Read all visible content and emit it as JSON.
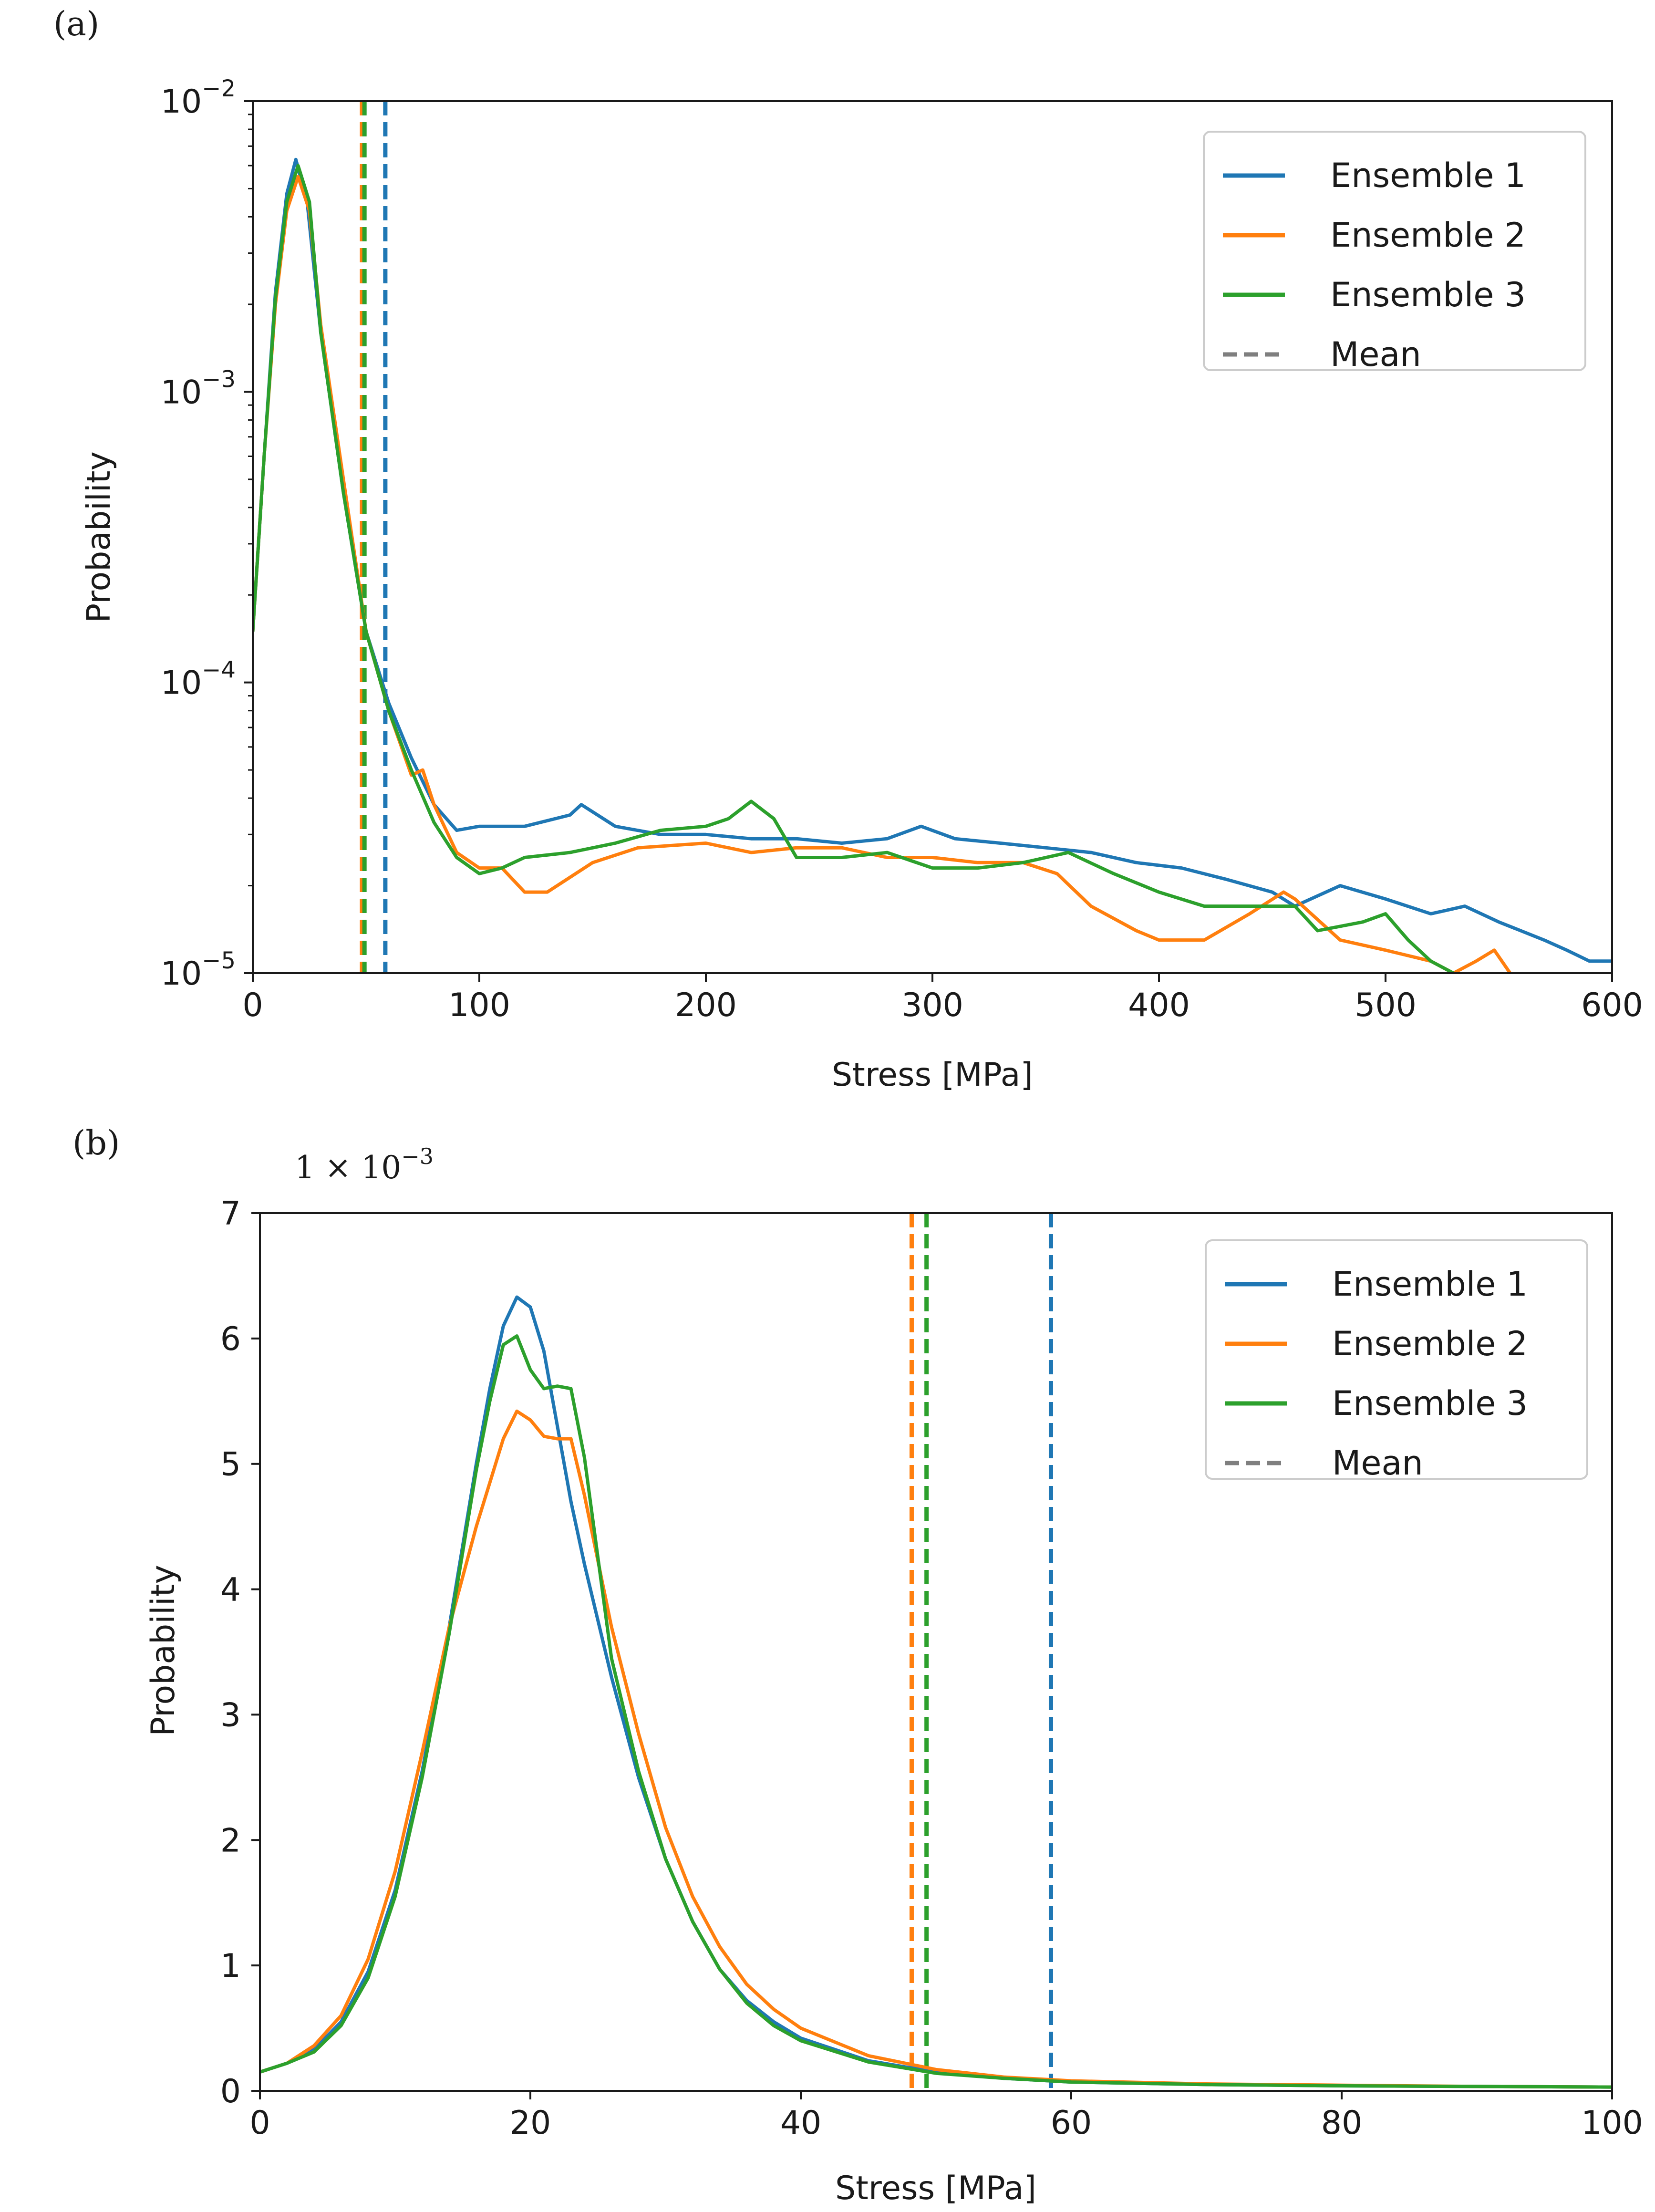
{
  "colors": {
    "ensemble1": "#1f77b4",
    "ensemble2": "#ff7f0e",
    "ensemble3": "#2ca02c",
    "mean_legend": "#7f7f7f",
    "axis": "#1a1a1a"
  },
  "chart_data": [
    {
      "panel_label": "(a)",
      "type": "line",
      "yscale": "log",
      "xlabel": "Stress [MPa]",
      "ylabel": "Probability",
      "xlim": [
        0,
        600
      ],
      "ylim": [
        1e-05,
        0.01
      ],
      "xticks": [
        0,
        100,
        200,
        300,
        400,
        500,
        600
      ],
      "xtick_labels": [
        "0",
        "100",
        "200",
        "300",
        "400",
        "500",
        "600"
      ],
      "yticks": [
        {
          "value": 0.01,
          "base": "10",
          "exp": "−2"
        },
        {
          "value": 0.001,
          "base": "10",
          "exp": "−3"
        },
        {
          "value": 0.0001,
          "base": "10",
          "exp": "−4"
        },
        {
          "value": 1e-05,
          "base": "10",
          "exp": "−5"
        }
      ],
      "legend": {
        "position": "top-right",
        "entries": [
          "Ensemble 1",
          "Ensemble 2",
          "Ensemble 3",
          "Mean"
        ]
      },
      "series": [
        {
          "name": "Ensemble 1",
          "color": "#1f77b4",
          "x": [
            0,
            5,
            10,
            15,
            19,
            24,
            30,
            40,
            50,
            60,
            70,
            80,
            90,
            100,
            120,
            140,
            145,
            160,
            180,
            200,
            220,
            240,
            260,
            280,
            295,
            310,
            330,
            350,
            370,
            390,
            410,
            430,
            450,
            460,
            480,
            500,
            520,
            535,
            550,
            570,
            580,
            590,
            600
          ],
          "values": [
            0.00015,
            0.0006,
            0.0022,
            0.0048,
            0.0063,
            0.0045,
            0.0016,
            0.00045,
            0.00015,
            8.5e-05,
            5.5e-05,
            3.8e-05,
            3.1e-05,
            3.2e-05,
            3.2e-05,
            3.5e-05,
            3.8e-05,
            3.2e-05,
            3e-05,
            3e-05,
            2.9e-05,
            2.9e-05,
            2.8e-05,
            2.9e-05,
            3.2e-05,
            2.9e-05,
            2.8e-05,
            2.7e-05,
            2.6e-05,
            2.4e-05,
            2.3e-05,
            2.1e-05,
            1.9e-05,
            1.7e-05,
            2e-05,
            1.8e-05,
            1.6e-05,
            1.7e-05,
            1.5e-05,
            1.3e-05,
            1.2e-05,
            1.1e-05,
            1.1e-05
          ]
        },
        {
          "name": "Ensemble 2",
          "color": "#ff7f0e",
          "x": [
            0,
            5,
            10,
            15,
            20,
            25,
            30,
            40,
            50,
            60,
            70,
            75,
            80,
            90,
            100,
            110,
            120,
            130,
            150,
            170,
            200,
            220,
            240,
            260,
            280,
            300,
            320,
            340,
            355,
            370,
            390,
            400,
            420,
            440,
            455,
            460,
            480,
            500,
            520,
            530,
            540,
            548,
            555
          ],
          "values": [
            0.00015,
            0.0006,
            0.002,
            0.0042,
            0.0055,
            0.0042,
            0.0017,
            0.0005,
            0.00015,
            8e-05,
            4.8e-05,
            5e-05,
            3.8e-05,
            2.6e-05,
            2.3e-05,
            2.3e-05,
            1.9e-05,
            1.9e-05,
            2.4e-05,
            2.7e-05,
            2.8e-05,
            2.6e-05,
            2.7e-05,
            2.7e-05,
            2.5e-05,
            2.5e-05,
            2.4e-05,
            2.4e-05,
            2.2e-05,
            1.7e-05,
            1.4e-05,
            1.3e-05,
            1.3e-05,
            1.6e-05,
            1.9e-05,
            1.8e-05,
            1.3e-05,
            1.2e-05,
            1.1e-05,
            1e-05,
            1.1e-05,
            1.2e-05,
            1e-05
          ]
        },
        {
          "name": "Ensemble 3",
          "color": "#2ca02c",
          "x": [
            0,
            5,
            10,
            15,
            20,
            25,
            30,
            40,
            50,
            60,
            70,
            80,
            90,
            100,
            110,
            120,
            140,
            160,
            180,
            200,
            210,
            220,
            230,
            240,
            260,
            280,
            300,
            320,
            340,
            360,
            380,
            400,
            420,
            440,
            460,
            470,
            490,
            500,
            510,
            520,
            530
          ],
          "values": [
            0.00015,
            0.0006,
            0.0021,
            0.0045,
            0.006,
            0.0045,
            0.0016,
            0.00045,
            0.00015,
            8e-05,
            5e-05,
            3.3e-05,
            2.5e-05,
            2.2e-05,
            2.3e-05,
            2.5e-05,
            2.6e-05,
            2.8e-05,
            3.1e-05,
            3.2e-05,
            3.4e-05,
            3.9e-05,
            3.4e-05,
            2.5e-05,
            2.5e-05,
            2.6e-05,
            2.3e-05,
            2.3e-05,
            2.4e-05,
            2.6e-05,
            2.2e-05,
            1.9e-05,
            1.7e-05,
            1.7e-05,
            1.7e-05,
            1.4e-05,
            1.5e-05,
            1.6e-05,
            1.3e-05,
            1.1e-05,
            1e-05
          ]
        }
      ],
      "means": [
        {
          "name": "Ensemble 1",
          "value": 58.5,
          "color": "#1f77b4"
        },
        {
          "name": "Ensemble 2",
          "value": 48.2,
          "color": "#ff7f0e"
        },
        {
          "name": "Ensemble 3",
          "value": 49.3,
          "color": "#2ca02c"
        }
      ]
    },
    {
      "panel_label": "(b)",
      "type": "line",
      "yscale": "linear",
      "scale_factor_label": "1 × 10",
      "scale_factor_exp": "−3",
      "xlabel": "Stress [MPa]",
      "ylabel": "Probability",
      "xlim": [
        0,
        100
      ],
      "ylim": [
        0,
        7
      ],
      "xticks": [
        0,
        20,
        40,
        60,
        80,
        100
      ],
      "xtick_labels": [
        "0",
        "20",
        "40",
        "60",
        "80",
        "100"
      ],
      "yticks": [
        0,
        1,
        2,
        3,
        4,
        5,
        6,
        7
      ],
      "ytick_labels": [
        "0",
        "1",
        "2",
        "3",
        "4",
        "5",
        "6",
        "7"
      ],
      "legend": {
        "position": "top-right",
        "entries": [
          "Ensemble 1",
          "Ensemble 2",
          "Ensemble 3",
          "Mean"
        ]
      },
      "series": [
        {
          "name": "Ensemble 1",
          "color": "#1f77b4",
          "x": [
            0,
            2,
            4,
            6,
            8,
            10,
            12,
            14,
            16,
            17,
            18,
            19,
            20,
            21,
            22,
            23,
            24,
            26,
            28,
            30,
            32,
            34,
            36,
            38,
            40,
            45,
            50,
            55,
            60,
            70,
            80,
            90,
            100
          ],
          "values": [
            0.15,
            0.22,
            0.33,
            0.55,
            0.95,
            1.6,
            2.55,
            3.7,
            5.0,
            5.6,
            6.1,
            6.33,
            6.25,
            5.9,
            5.3,
            4.7,
            4.2,
            3.3,
            2.5,
            1.85,
            1.35,
            0.97,
            0.72,
            0.55,
            0.42,
            0.24,
            0.15,
            0.1,
            0.07,
            0.05,
            0.04,
            0.035,
            0.03
          ]
        },
        {
          "name": "Ensemble 2",
          "color": "#ff7f0e",
          "x": [
            0,
            2,
            4,
            6,
            8,
            10,
            12,
            14,
            16,
            17,
            18,
            19,
            20,
            21,
            22,
            23,
            24,
            26,
            28,
            30,
            32,
            34,
            36,
            38,
            40,
            45,
            50,
            55,
            60,
            70,
            80,
            90,
            100
          ],
          "values": [
            0.15,
            0.22,
            0.36,
            0.6,
            1.05,
            1.75,
            2.7,
            3.7,
            4.5,
            4.85,
            5.2,
            5.42,
            5.35,
            5.22,
            5.2,
            5.2,
            4.75,
            3.7,
            2.85,
            2.1,
            1.55,
            1.15,
            0.85,
            0.65,
            0.5,
            0.28,
            0.17,
            0.11,
            0.08,
            0.055,
            0.045,
            0.035,
            0.03
          ]
        },
        {
          "name": "Ensemble 3",
          "color": "#2ca02c",
          "x": [
            0,
            2,
            4,
            6,
            8,
            10,
            12,
            14,
            16,
            17,
            18,
            19,
            20,
            21,
            22,
            23,
            24,
            26,
            28,
            30,
            32,
            34,
            36,
            38,
            40,
            45,
            50,
            55,
            60,
            70,
            80,
            90,
            100
          ],
          "values": [
            0.15,
            0.22,
            0.31,
            0.52,
            0.9,
            1.55,
            2.5,
            3.65,
            4.95,
            5.5,
            5.95,
            6.02,
            5.75,
            5.6,
            5.62,
            5.6,
            5.05,
            3.45,
            2.55,
            1.85,
            1.35,
            0.97,
            0.7,
            0.52,
            0.4,
            0.23,
            0.14,
            0.1,
            0.07,
            0.05,
            0.04,
            0.035,
            0.03
          ]
        }
      ],
      "means": [
        {
          "name": "Ensemble 1",
          "value": 58.5,
          "color": "#1f77b4"
        },
        {
          "name": "Ensemble 2",
          "value": 48.2,
          "color": "#ff7f0e"
        },
        {
          "name": "Ensemble 3",
          "value": 49.3,
          "color": "#2ca02c"
        }
      ]
    }
  ]
}
